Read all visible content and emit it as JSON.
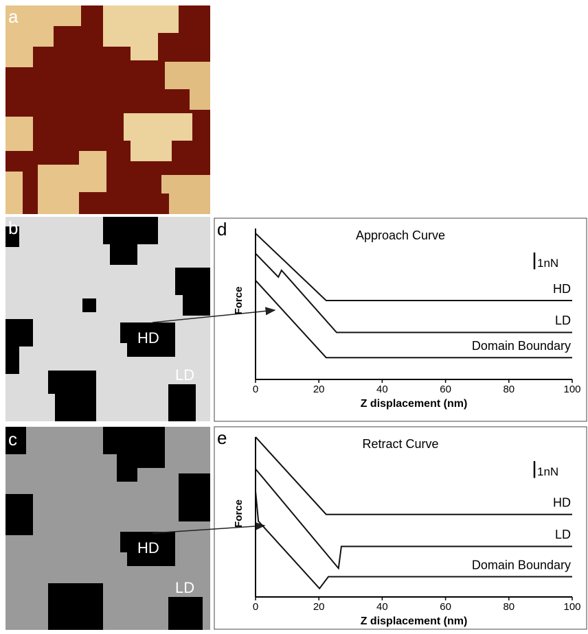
{
  "images": [
    {
      "label": "a"
    },
    {
      "label": "b",
      "annotations": [
        "HD",
        "LD"
      ]
    },
    {
      "label": "c",
      "annotations": [
        "HD",
        "LD"
      ]
    }
  ],
  "chart_data": [
    {
      "type": "line",
      "panel_label": "d",
      "title": "Approach Curve",
      "xlabel": "Z displacement (nm)",
      "ylabel": "Force",
      "xlim": [
        0,
        100
      ],
      "xticks": [
        0,
        20,
        40,
        60,
        80,
        100
      ],
      "ylim": [
        0,
        9.4
      ],
      "scale_bar": {
        "value": 1,
        "label": "1nN"
      },
      "series": [
        {
          "name": "HD",
          "color": "#111111",
          "x": [
            0,
            22.3,
            100
          ],
          "values": [
            8.7,
            4.7,
            4.7
          ]
        },
        {
          "name": "LD",
          "color": "#111111",
          "x": [
            0,
            7.2,
            8.2,
            25.6,
            100
          ],
          "values": [
            7.5,
            6.1,
            6.5,
            2.8,
            2.8
          ]
        },
        {
          "name": "Domain Boundary",
          "color": "#111111",
          "x": [
            0,
            22.3,
            100
          ],
          "values": [
            5.9,
            1.3,
            1.3
          ]
        }
      ]
    },
    {
      "type": "line",
      "panel_label": "e",
      "title": "Retract Curve",
      "xlabel": "Z displacement (nm)",
      "ylabel": "Force",
      "xlim": [
        0,
        100
      ],
      "xticks": [
        0,
        20,
        40,
        60,
        80,
        100
      ],
      "ylim": [
        0,
        9.9
      ],
      "scale_bar": {
        "value": 1,
        "label": "1nN"
      },
      "series": [
        {
          "name": "HD",
          "color": "#111111",
          "x": [
            0,
            22.3,
            100
          ],
          "values": [
            9.5,
            4.9,
            4.9
          ]
        },
        {
          "name": "LD",
          "color": "#111111",
          "x": [
            0,
            26.2,
            27.1,
            100
          ],
          "values": [
            7.6,
            1.7,
            3.0,
            3.0
          ]
        },
        {
          "name": "Domain Boundary",
          "color": "#111111",
          "x": [
            0,
            0.9,
            20.2,
            23,
            100
          ],
          "values": [
            6.3,
            4.5,
            0.5,
            1.2,
            1.2
          ]
        }
      ]
    }
  ]
}
